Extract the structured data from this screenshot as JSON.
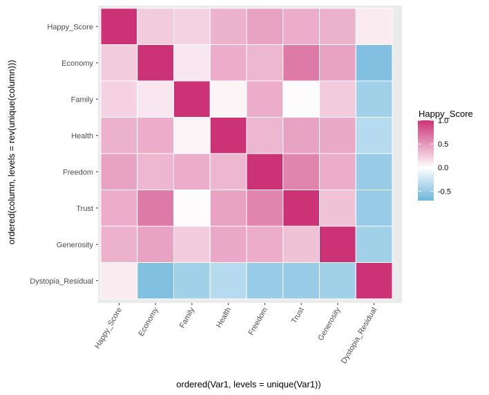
{
  "chart_data": {
    "type": "heatmap",
    "x_categories": [
      "Happy_Score",
      "Economy",
      "Family",
      "Health",
      "Freedom",
      "Trust",
      "Generosity",
      "Dystopia_Residual"
    ],
    "y_categories": [
      "Happy_Score",
      "Economy",
      "Family",
      "Health",
      "Freedom",
      "Trust",
      "Generosity",
      "Dystopia_Residual"
    ],
    "values": [
      [
        1.0,
        0.25,
        0.22,
        0.38,
        0.45,
        0.4,
        0.38,
        0.1
      ],
      [
        0.25,
        1.0,
        0.12,
        0.4,
        0.35,
        0.65,
        0.45,
        -0.6
      ],
      [
        0.22,
        0.12,
        1.0,
        0.05,
        0.4,
        0.02,
        0.25,
        -0.45
      ],
      [
        0.38,
        0.4,
        0.05,
        1.0,
        0.35,
        0.45,
        0.42,
        -0.35
      ],
      [
        0.45,
        0.35,
        0.4,
        0.35,
        1.0,
        0.6,
        0.4,
        -0.5
      ],
      [
        0.4,
        0.65,
        0.02,
        0.45,
        0.6,
        1.0,
        0.3,
        -0.5
      ],
      [
        0.38,
        0.45,
        0.25,
        0.42,
        0.4,
        0.3,
        1.0,
        -0.45
      ],
      [
        0.1,
        -0.6,
        -0.45,
        -0.35,
        -0.5,
        -0.5,
        -0.45,
        1.0
      ]
    ],
    "xlabel": "ordered(Var1, levels = unique(Var1))",
    "ylabel": "ordered(column, levels = rev(unique(column)))",
    "legend": {
      "title": "Happy_Score",
      "ticks": [
        "1.0",
        "0.5",
        "0.0",
        "-0.5"
      ],
      "tick_values": [
        1.0,
        0.5,
        0.0,
        -0.5
      ],
      "range": [
        -0.7,
        1.0
      ],
      "placement": "right"
    },
    "colors": {
      "low": "#6db6dc",
      "mid": "#ffffff",
      "high": "#cc3377",
      "panel": "#ebebeb"
    }
  }
}
